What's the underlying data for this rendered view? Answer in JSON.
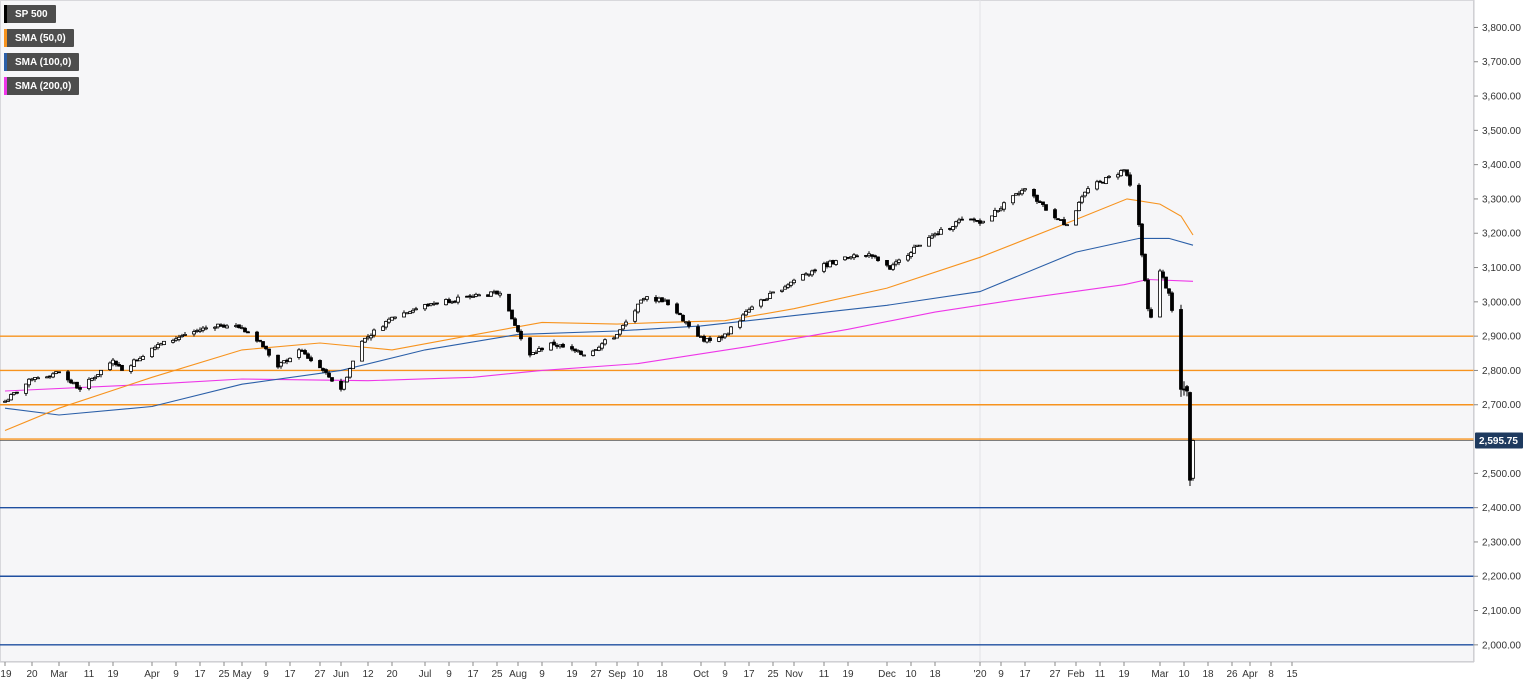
{
  "chart_data": {
    "type": "candlestick",
    "instrument": "SP 500",
    "last_price_label": "2,595.75",
    "last_price": 2595.75,
    "ylim": [
      1950,
      3880
    ],
    "y_ticks": [
      {
        "value": 3800,
        "label": "3,800.00"
      },
      {
        "value": 3700,
        "label": "3,700.00"
      },
      {
        "value": 3600,
        "label": "3,600.00"
      },
      {
        "value": 3500,
        "label": "3,500.00"
      },
      {
        "value": 3400,
        "label": "3,400.00"
      },
      {
        "value": 3300,
        "label": "3,300.00"
      },
      {
        "value": 3200,
        "label": "3,200.00"
      },
      {
        "value": 3100,
        "label": "3,100.00"
      },
      {
        "value": 3000,
        "label": "3,000.00"
      },
      {
        "value": 2900,
        "label": "2,900.00"
      },
      {
        "value": 2800,
        "label": "2,800.00"
      },
      {
        "value": 2700,
        "label": "2,700.00"
      },
      {
        "value": 2500,
        "label": "2,500.00"
      },
      {
        "value": 2400,
        "label": "2,400.00"
      },
      {
        "value": 2300,
        "label": "2,300.00"
      },
      {
        "value": 2200,
        "label": "2,200.00"
      },
      {
        "value": 2100,
        "label": "2,100.00"
      },
      {
        "value": 2000,
        "label": "2,000.00"
      }
    ],
    "x_start": "2019-02-11",
    "x_ticks": [
      {
        "date": "2019-02-11",
        "label": "'19"
      },
      {
        "date": "2019-02-20",
        "label": "20"
      },
      {
        "date": "2019-03-01",
        "label": "Mar"
      },
      {
        "date": "2019-03-11",
        "label": "11"
      },
      {
        "date": "2019-03-19",
        "label": "19"
      },
      {
        "date": "2019-04-01",
        "label": "Apr"
      },
      {
        "date": "2019-04-09",
        "label": "9"
      },
      {
        "date": "2019-04-17",
        "label": "17"
      },
      {
        "date": "2019-04-25",
        "label": "25"
      },
      {
        "date": "2019-05-01",
        "label": "May"
      },
      {
        "date": "2019-05-09",
        "label": "9"
      },
      {
        "date": "2019-05-17",
        "label": "17"
      },
      {
        "date": "2019-05-27",
        "label": "27"
      },
      {
        "date": "2019-06-03",
        "label": "Jun"
      },
      {
        "date": "2019-06-12",
        "label": "12"
      },
      {
        "date": "2019-06-20",
        "label": "20"
      },
      {
        "date": "2019-07-01",
        "label": "Jul"
      },
      {
        "date": "2019-07-09",
        "label": "9"
      },
      {
        "date": "2019-07-17",
        "label": "17"
      },
      {
        "date": "2019-07-25",
        "label": "25"
      },
      {
        "date": "2019-08-01",
        "label": "Aug"
      },
      {
        "date": "2019-08-09",
        "label": "9"
      },
      {
        "date": "2019-08-19",
        "label": "19"
      },
      {
        "date": "2019-08-27",
        "label": "27"
      },
      {
        "date": "2019-09-03",
        "label": "Sep"
      },
      {
        "date": "2019-09-10",
        "label": "10"
      },
      {
        "date": "2019-09-18",
        "label": "18"
      },
      {
        "date": "2019-10-01",
        "label": "Oct"
      },
      {
        "date": "2019-10-09",
        "label": "9"
      },
      {
        "date": "2019-10-17",
        "label": "17"
      },
      {
        "date": "2019-10-25",
        "label": "25"
      },
      {
        "date": "2019-11-01",
        "label": "Nov"
      },
      {
        "date": "2019-11-11",
        "label": "11"
      },
      {
        "date": "2019-11-19",
        "label": "19"
      },
      {
        "date": "2019-12-02",
        "label": "Dec"
      },
      {
        "date": "2019-12-10",
        "label": "10"
      },
      {
        "date": "2019-12-18",
        "label": "18"
      },
      {
        "date": "2020-01-02",
        "label": "'20"
      },
      {
        "date": "2020-01-09",
        "label": "9"
      },
      {
        "date": "2020-01-17",
        "label": "17"
      },
      {
        "date": "2020-01-27",
        "label": "27"
      },
      {
        "date": "2020-02-03",
        "label": "Feb"
      },
      {
        "date": "2020-02-11",
        "label": "11"
      },
      {
        "date": "2020-02-19",
        "label": "19"
      },
      {
        "date": "2020-03-02",
        "label": "Mar"
      },
      {
        "date": "2020-03-10",
        "label": "10"
      },
      {
        "date": "2020-03-18",
        "label": "18"
      },
      {
        "date": "2020-03-26",
        "label": "26"
      },
      {
        "date": "2020-04-01",
        "label": "Apr"
      },
      {
        "date": "2020-04-08",
        "label": "8"
      },
      {
        "date": "2020-04-15",
        "label": "15"
      }
    ],
    "legend": [
      {
        "label": "SP 500",
        "color": "#000000"
      },
      {
        "label": "SMA (50,0)",
        "color": "#f7931e"
      },
      {
        "label": "SMA (100,0)",
        "color": "#2b5fa8"
      },
      {
        "label": "SMA (200,0)",
        "color": "#ee36e8"
      }
    ],
    "horizontal_levels": [
      {
        "value": 2900,
        "color": "#f7931e"
      },
      {
        "value": 2800,
        "color": "#f7931e"
      },
      {
        "value": 2700,
        "color": "#f7931e"
      },
      {
        "value": 2600,
        "color": "#f7931e"
      },
      {
        "value": 2400,
        "color": "#1f4fa0"
      },
      {
        "value": 2200,
        "color": "#1f4fa0"
      },
      {
        "value": 2000,
        "color": "#1f4fa0"
      }
    ],
    "close_anchors": [
      [
        "2019-02-11",
        2710
      ],
      [
        "2019-02-20",
        2775
      ],
      [
        "2019-03-01",
        2795
      ],
      [
        "2019-03-08",
        2745
      ],
      [
        "2019-03-19",
        2830
      ],
      [
        "2019-03-22",
        2800
      ],
      [
        "2019-04-01",
        2865
      ],
      [
        "2019-04-12",
        2905
      ],
      [
        "2019-04-23",
        2935
      ],
      [
        "2019-05-01",
        2925
      ],
      [
        "2019-05-07",
        2885
      ],
      [
        "2019-05-13",
        2810
      ],
      [
        "2019-05-20",
        2860
      ],
      [
        "2019-05-28",
        2800
      ],
      [
        "2019-06-03",
        2745
      ],
      [
        "2019-06-10",
        2885
      ],
      [
        "2019-06-20",
        2955
      ],
      [
        "2019-07-03",
        2995
      ],
      [
        "2019-07-15",
        3015
      ],
      [
        "2019-07-26",
        3025
      ],
      [
        "2019-08-05",
        2845
      ],
      [
        "2019-08-12",
        2880
      ],
      [
        "2019-08-23",
        2845
      ],
      [
        "2019-09-03",
        2905
      ],
      [
        "2019-09-12",
        3010
      ],
      [
        "2019-09-19",
        3005
      ],
      [
        "2019-10-02",
        2885
      ],
      [
        "2019-10-08",
        2895
      ],
      [
        "2019-10-18",
        2985
      ],
      [
        "2019-11-04",
        3080
      ],
      [
        "2019-11-15",
        3120
      ],
      [
        "2019-11-26",
        3140
      ],
      [
        "2019-12-03",
        3095
      ],
      [
        "2019-12-12",
        3165
      ],
      [
        "2019-12-27",
        3240
      ],
      [
        "2020-01-03",
        3235
      ],
      [
        "2020-01-17",
        3330
      ],
      [
        "2020-01-27",
        3245
      ],
      [
        "2020-01-31",
        3225
      ],
      [
        "2020-02-07",
        3330
      ],
      [
        "2020-02-19",
        3385
      ],
      [
        "2020-02-21",
        3340
      ],
      [
        "2020-02-24",
        3225
      ],
      [
        "2020-02-27",
        2980
      ],
      [
        "2020-02-28",
        2955
      ],
      [
        "2020-03-02",
        3090
      ],
      [
        "2020-03-05",
        3025
      ],
      [
        "2020-03-06",
        2975
      ],
      [
        "2020-03-09",
        2745
      ],
      [
        "2020-03-11",
        2740
      ],
      [
        "2020-03-12",
        2480
      ],
      [
        "2020-03-13",
        2595.75
      ]
    ],
    "sma_50": [
      [
        "2019-02-11",
        2625
      ],
      [
        "2019-03-01",
        2690
      ],
      [
        "2019-04-01",
        2780
      ],
      [
        "2019-05-01",
        2860
      ],
      [
        "2019-05-27",
        2880
      ],
      [
        "2019-06-20",
        2860
      ],
      [
        "2019-07-15",
        2900
      ],
      [
        "2019-08-09",
        2940
      ],
      [
        "2019-09-03",
        2935
      ],
      [
        "2019-09-18",
        2940
      ],
      [
        "2019-10-09",
        2945
      ],
      [
        "2019-11-01",
        2980
      ],
      [
        "2019-12-02",
        3040
      ],
      [
        "2020-01-02",
        3130
      ],
      [
        "2020-02-03",
        3240
      ],
      [
        "2020-02-20",
        3300
      ],
      [
        "2020-03-02",
        3285
      ],
      [
        "2020-03-09",
        3250
      ],
      [
        "2020-03-13",
        3195
      ]
    ],
    "sma_100": [
      [
        "2019-02-11",
        2690
      ],
      [
        "2019-03-01",
        2670
      ],
      [
        "2019-04-01",
        2695
      ],
      [
        "2019-05-01",
        2760
      ],
      [
        "2019-06-03",
        2800
      ],
      [
        "2019-07-01",
        2860
      ],
      [
        "2019-08-01",
        2905
      ],
      [
        "2019-09-03",
        2915
      ],
      [
        "2019-10-01",
        2930
      ],
      [
        "2019-11-01",
        2960
      ],
      [
        "2019-12-02",
        2990
      ],
      [
        "2020-01-02",
        3030
      ],
      [
        "2020-02-03",
        3145
      ],
      [
        "2020-02-24",
        3185
      ],
      [
        "2020-03-05",
        3185
      ],
      [
        "2020-03-13",
        3165
      ]
    ],
    "sma_200": [
      [
        "2019-02-11",
        2740
      ],
      [
        "2019-04-01",
        2760
      ],
      [
        "2019-05-01",
        2775
      ],
      [
        "2019-06-12",
        2770
      ],
      [
        "2019-07-17",
        2780
      ],
      [
        "2019-08-09",
        2800
      ],
      [
        "2019-09-10",
        2820
      ],
      [
        "2019-10-17",
        2870
      ],
      [
        "2019-11-19",
        2920
      ],
      [
        "2019-12-18",
        2970
      ],
      [
        "2020-01-17",
        3010
      ],
      [
        "2020-02-19",
        3050
      ],
      [
        "2020-02-27",
        3065
      ],
      [
        "2020-03-13",
        3060
      ]
    ]
  }
}
